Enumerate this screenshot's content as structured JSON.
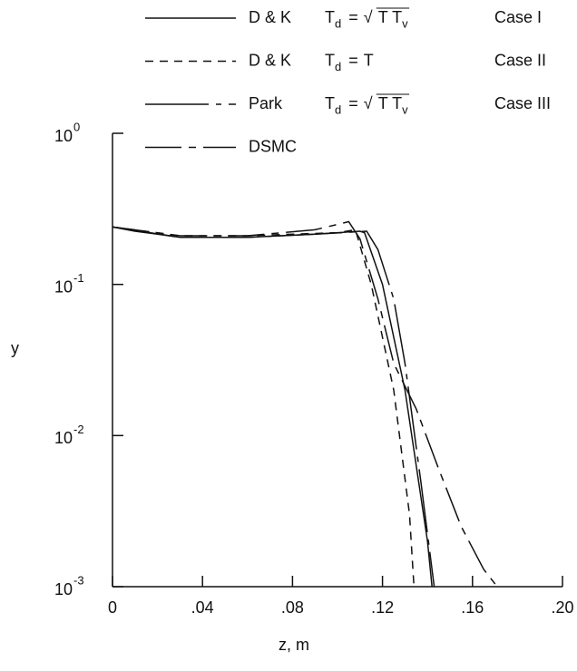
{
  "chart_data": {
    "type": "line",
    "x_label": "z, m",
    "y_label": "y",
    "xlim": [
      0,
      0.2
    ],
    "ylim": [
      0.001,
      1
    ],
    "log_y": true,
    "xticks": [
      0,
      {
        "value": 0.04,
        "label": ".04"
      },
      {
        "value": 0.08,
        "label": ".08"
      },
      {
        "value": 0.12,
        "label": ".12"
      },
      {
        "value": 0.16,
        "label": ".16"
      },
      {
        "value": 0.2,
        "label": ".20"
      }
    ],
    "yticks": [
      {
        "value": 1,
        "label": "10",
        "exponent": "0"
      },
      {
        "value": 0.1,
        "label": "10",
        "exponent": "-1"
      },
      {
        "value": 0.01,
        "label": "10",
        "exponent": "-2"
      },
      {
        "value": 0.001,
        "label": "10",
        "exponent": "-3"
      }
    ],
    "legend": "top",
    "series": [
      {
        "name": "D & K",
        "color": "#111",
        "dash": "none",
        "formula": [
          {
            "text": "T"
          },
          {
            "text": "d",
            "sub": true
          },
          {
            "text": "="
          },
          {
            "text": "√"
          },
          {
            "text": "T T",
            "overline": true
          },
          {
            "text": "v",
            "sub": true,
            "overline": true
          }
        ],
        "case": "Case I",
        "x": [
          0,
          0.01,
          0.02,
          0.03,
          0.06,
          0.09,
          0.11,
          0.112,
          0.12,
          0.13,
          0.14,
          0.142
        ],
        "values": [
          0.24,
          0.225,
          0.215,
          0.205,
          0.205,
          0.215,
          0.225,
          0.22,
          0.1,
          0.02,
          0.002,
          0.001
        ]
      },
      {
        "name": "D & K",
        "color": "#111",
        "dash": "9 7",
        "formula": [
          {
            "text": "T"
          },
          {
            "text": "d",
            "sub": true
          },
          {
            "text": "="
          },
          {
            "text": "T"
          }
        ],
        "case": "Case II",
        "x": [
          0,
          0.03,
          0.06,
          0.1,
          0.108,
          0.115,
          0.125,
          0.132,
          0.134
        ],
        "values": [
          0.24,
          0.21,
          0.21,
          0.22,
          0.23,
          0.1,
          0.02,
          0.003,
          0.001
        ]
      },
      {
        "name": "Park",
        "color": "#111",
        "dash": "70 8 6 8",
        "formula": [
          {
            "text": "T"
          },
          {
            "text": "d",
            "sub": true
          },
          {
            "text": "="
          },
          {
            "text": "√"
          },
          {
            "text": "T T",
            "overline": true
          },
          {
            "text": "v",
            "sub": true,
            "overline": true
          }
        ],
        "case": "Case III",
        "x": [
          0,
          0.03,
          0.06,
          0.09,
          0.113,
          0.118,
          0.125,
          0.13,
          0.137,
          0.143
        ],
        "values": [
          0.24,
          0.205,
          0.205,
          0.215,
          0.225,
          0.17,
          0.08,
          0.03,
          0.005,
          0.001
        ]
      },
      {
        "name": "DSMC",
        "color": "#111",
        "dash": "40 8 8 8",
        "x": [
          0,
          0.03,
          0.06,
          0.09,
          0.105,
          0.11,
          0.118,
          0.125,
          0.135,
          0.145,
          0.155,
          0.165,
          0.171
        ],
        "values": [
          0.24,
          0.21,
          0.21,
          0.23,
          0.26,
          0.2,
          0.08,
          0.03,
          0.015,
          0.006,
          0.0025,
          0.0013,
          0.001
        ]
      }
    ]
  }
}
